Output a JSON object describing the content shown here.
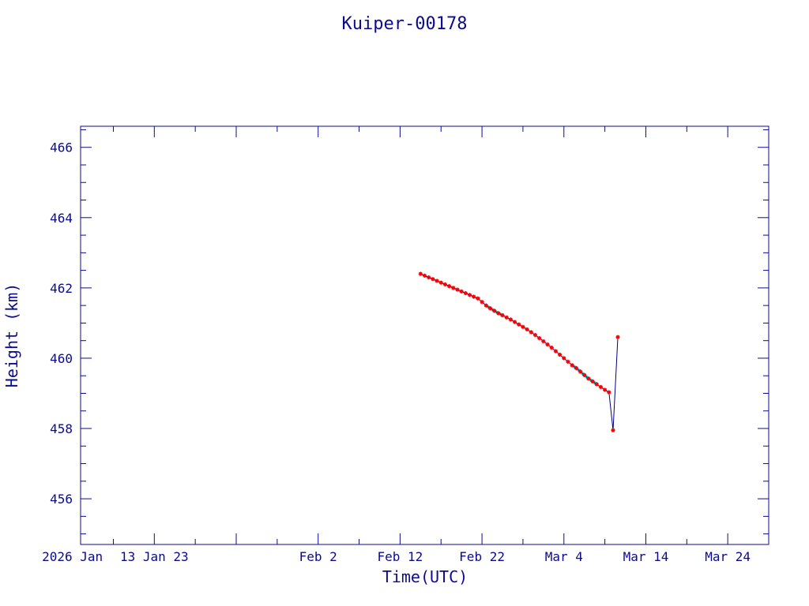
{
  "chart_data": {
    "type": "scatter",
    "title": "Kuiper-00178",
    "xlabel": "Time(UTC)",
    "ylabel": "Height (km)",
    "ylim": [
      454.7,
      466.6
    ],
    "xlim": [
      "2026-01-04",
      "2026-03-29"
    ],
    "x_tick_labels": [
      {
        "date": "2026-01-03",
        "label": "2026 Jan"
      },
      {
        "date": "2026-01-13",
        "label": "13 Jan 23"
      },
      {
        "date": "2026-02-02",
        "label": "Feb  2"
      },
      {
        "date": "2026-02-12",
        "label": "Feb 12"
      },
      {
        "date": "2026-02-22",
        "label": "Feb 22"
      },
      {
        "date": "2026-03-04",
        "label": "Mar  4"
      },
      {
        "date": "2026-03-14",
        "label": "Mar 14"
      },
      {
        "date": "2026-03-24",
        "label": "Mar 24"
      }
    ],
    "y_ticks": [
      456,
      458,
      460,
      462,
      464,
      466
    ],
    "grid": false,
    "colors": {
      "axis": "#0b0b8f",
      "line": "#000080",
      "points": "#ff0000",
      "highlight": "#00e5e5"
    },
    "series": [
      {
        "marker": "red asterisk",
        "points": [
          [
            "2026-02-14T12:00",
            462.4
          ],
          [
            "2026-02-15T00:00",
            462.35
          ],
          [
            "2026-02-15T12:00",
            462.3
          ],
          [
            "2026-02-16T00:00",
            462.25
          ],
          [
            "2026-02-16T12:00",
            462.2
          ],
          [
            "2026-02-17T00:00",
            462.15
          ],
          [
            "2026-02-17T12:00",
            462.1
          ],
          [
            "2026-02-18T00:00",
            462.05
          ],
          [
            "2026-02-18T12:00",
            462.0
          ],
          [
            "2026-02-19T00:00",
            461.95
          ],
          [
            "2026-02-19T12:00",
            461.9
          ],
          [
            "2026-02-20T00:00",
            461.85
          ],
          [
            "2026-02-20T12:00",
            461.8
          ],
          [
            "2026-02-21T00:00",
            461.75
          ],
          [
            "2026-02-21T12:00",
            461.7
          ],
          [
            "2026-02-22T00:00",
            461.6
          ],
          [
            "2026-02-22T12:00",
            461.5
          ],
          [
            "2026-02-23T00:00",
            461.42
          ],
          [
            "2026-02-23T12:00",
            461.35
          ],
          [
            "2026-02-24T00:00",
            461.28
          ],
          [
            "2026-02-24T12:00",
            461.22
          ],
          [
            "2026-02-25T00:00",
            461.16
          ],
          [
            "2026-02-25T12:00",
            461.1
          ],
          [
            "2026-02-26T00:00",
            461.03
          ],
          [
            "2026-02-26T12:00",
            460.96
          ],
          [
            "2026-02-27T00:00",
            460.89
          ],
          [
            "2026-02-27T12:00",
            460.82
          ],
          [
            "2026-02-28T00:00",
            460.74
          ],
          [
            "2026-02-28T12:00",
            460.66
          ],
          [
            "2026-03-01T00:00",
            460.57
          ],
          [
            "2026-03-01T12:00",
            460.48
          ],
          [
            "2026-03-02T00:00",
            460.39
          ],
          [
            "2026-03-02T12:00",
            460.3
          ],
          [
            "2026-03-03T00:00",
            460.2
          ],
          [
            "2026-03-03T12:00",
            460.1
          ],
          [
            "2026-03-04T00:00",
            460.0
          ],
          [
            "2026-03-04T12:00",
            459.9
          ],
          [
            "2026-03-05T00:00",
            459.8
          ],
          [
            "2026-03-05T12:00",
            459.72
          ],
          [
            "2026-03-06T00:00",
            459.62
          ],
          [
            "2026-03-06T12:00",
            459.52
          ],
          [
            "2026-03-07T00:00",
            459.42
          ],
          [
            "2026-03-07T12:00",
            459.34
          ],
          [
            "2026-03-08T00:00",
            459.26
          ],
          [
            "2026-03-08T12:00",
            459.18
          ],
          [
            "2026-03-09T00:00",
            459.1
          ],
          [
            "2026-03-09T12:00",
            459.03
          ],
          [
            "2026-03-10T00:00",
            457.95
          ],
          [
            "2026-03-10T14:00",
            460.6
          ]
        ]
      }
    ]
  }
}
